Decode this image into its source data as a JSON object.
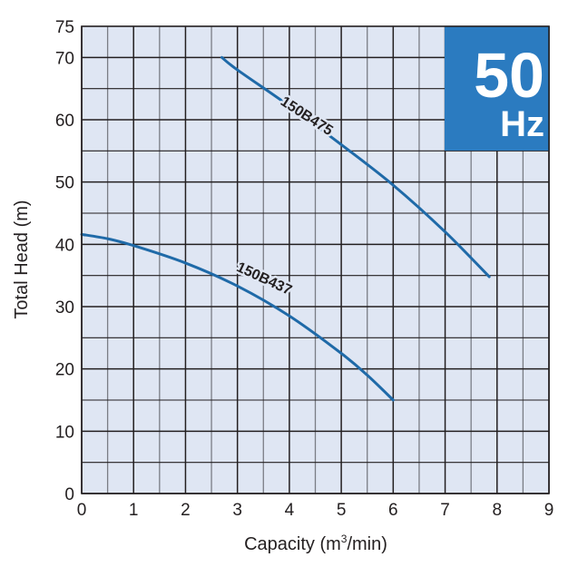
{
  "chart_data": {
    "type": "line",
    "title": "",
    "badge": {
      "value": "50",
      "unit": "Hz",
      "color": "#2b7bc0"
    },
    "xlabel": "Capacity (m³/min)",
    "xlabel_parts": {
      "prefix": "Capacity (m",
      "sup": "3",
      "suffix": "/min)"
    },
    "ylabel": "Total Head (m)",
    "xlim": [
      0,
      9
    ],
    "ylim": [
      0,
      75
    ],
    "x_ticks": [
      0,
      1,
      2,
      3,
      4,
      5,
      6,
      7,
      8,
      9
    ],
    "y_ticks": [
      0,
      10,
      20,
      30,
      40,
      50,
      60,
      70,
      75
    ],
    "grid": true,
    "grid_minor_x": 0.5,
    "grid_minor_y": 5,
    "plot_background": "#dfe6f3",
    "line_color": "#1f6aa8",
    "series": [
      {
        "name": "150B475",
        "x": [
          2.7,
          3.0,
          4.0,
          5.0,
          6.0,
          7.0,
          7.85
        ],
        "y": [
          70.0,
          68.0,
          62.2,
          56.0,
          49.5,
          42.0,
          34.8
        ],
        "label_pos": {
          "x": 4.25,
          "y": 59.5,
          "angle": 33
        }
      },
      {
        "name": "150B437",
        "x": [
          0.0,
          0.5,
          1.0,
          2.0,
          3.0,
          4.0,
          5.0,
          5.5,
          6.0
        ],
        "y": [
          41.6,
          40.9,
          39.8,
          37.0,
          33.3,
          28.5,
          22.5,
          19.0,
          15.0
        ],
        "label_pos": {
          "x": 3.45,
          "y": 33.3,
          "angle": 25
        }
      }
    ]
  }
}
